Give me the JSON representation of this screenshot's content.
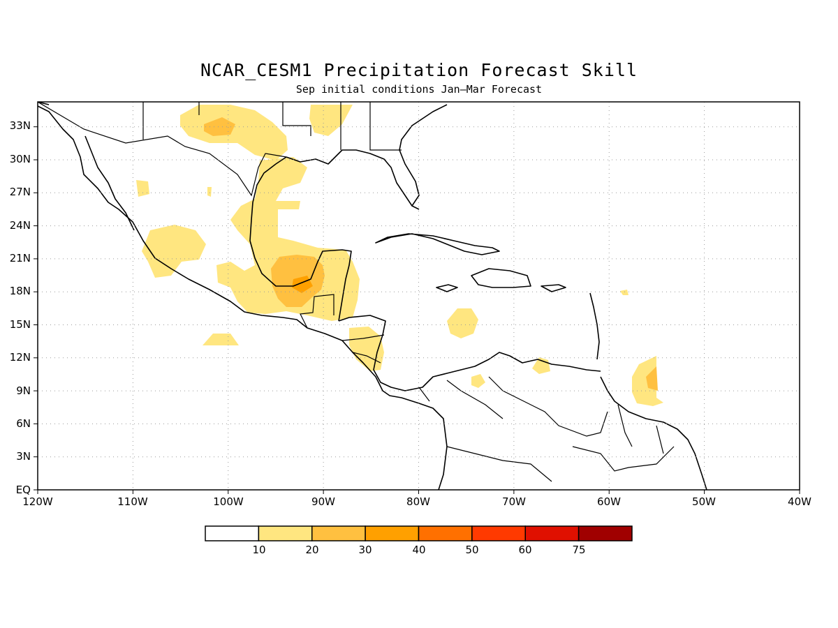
{
  "title": "NCAR_CESM1 Precipitation Forecast Skill",
  "subtitle": "Sep initial conditions  Jan—Mar Forecast",
  "lon_labels": [
    "120W",
    "110W",
    "100W",
    "90W",
    "80W",
    "70W",
    "60W",
    "50W",
    "40W"
  ],
  "lat_labels": [
    "EQ",
    "3N",
    "6N",
    "9N",
    "12N",
    "15N",
    "18N",
    "21N",
    "24N",
    "27N",
    "30N",
    "33N"
  ],
  "colorbar": {
    "labels": [
      "10",
      "20",
      "30",
      "40",
      "50",
      "60",
      "75"
    ],
    "colors": [
      "#ffffff",
      "#ffe680",
      "#ffc040",
      "#ffa000",
      "#ff7000",
      "#ff3a00",
      "#e01000",
      "#a00000"
    ]
  },
  "skill_regions": [
    {
      "name": "Gulf of Mexico / Yucatan",
      "level": "10-20"
    },
    {
      "name": "Bay of Campeche / Yucatan core",
      "level": "20-30"
    },
    {
      "name": "Southern Texas / Mexico",
      "level": "20-30"
    },
    {
      "name": "Atlantic east of Lesser Antilles",
      "level": "20-30"
    }
  ]
}
